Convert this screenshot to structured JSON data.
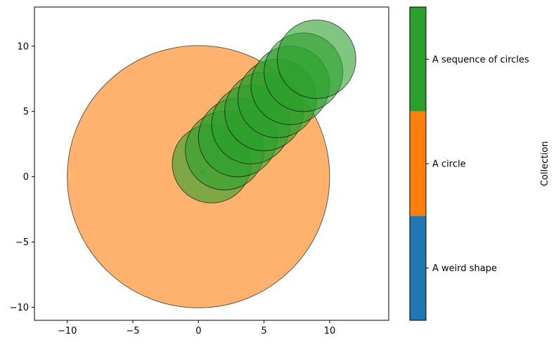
{
  "chart_data": {
    "type": "scatter",
    "title": "",
    "xlabel": "",
    "ylabel": "",
    "xlim": [
      -12.5,
      14.5
    ],
    "ylim": [
      -11,
      13
    ],
    "x_ticks": [
      -10,
      -5,
      0,
      5,
      10
    ],
    "y_ticks": [
      -10,
      -5,
      0,
      5,
      10
    ],
    "x_tick_labels": [
      "−10",
      "−5",
      "0",
      "5",
      "10"
    ],
    "y_tick_labels": [
      "−10",
      "−5",
      "0",
      "5",
      "10"
    ],
    "grid": false,
    "colors": {
      "weird_shape": "#1f77b4",
      "circle": "#ff7f0e",
      "sequence": "#2ca02c",
      "edge": "#000000"
    },
    "alpha": 0.6,
    "series": [
      {
        "name": "A weird shape",
        "color_key": "weird_shape",
        "shape": "small wedge",
        "points": [
          [
            0.3,
            0.4
          ]
        ]
      },
      {
        "name": "A circle",
        "color_key": "circle",
        "circles": [
          {
            "x": 0,
            "y": 0,
            "r": 10
          }
        ]
      },
      {
        "name": "A sequence of circles",
        "color_key": "sequence",
        "circles": [
          {
            "x": 1,
            "y": 1,
            "r": 3
          },
          {
            "x": 2,
            "y": 2,
            "r": 3
          },
          {
            "x": 3,
            "y": 3,
            "r": 3
          },
          {
            "x": 4,
            "y": 4,
            "r": 3
          },
          {
            "x": 5,
            "y": 5,
            "r": 3
          },
          {
            "x": 6,
            "y": 6,
            "r": 3
          },
          {
            "x": 7,
            "y": 7,
            "r": 3
          },
          {
            "x": 8,
            "y": 8,
            "r": 3
          },
          {
            "x": 9,
            "y": 9,
            "r": 3
          }
        ]
      }
    ],
    "colorbar": {
      "label": "Collection",
      "entries": [
        {
          "label": "A sequence of circles",
          "color": "#2ca02c"
        },
        {
          "label": "A circle",
          "color": "#ff7f0e"
        },
        {
          "label": "A weird shape",
          "color": "#1f77b4"
        }
      ]
    }
  }
}
